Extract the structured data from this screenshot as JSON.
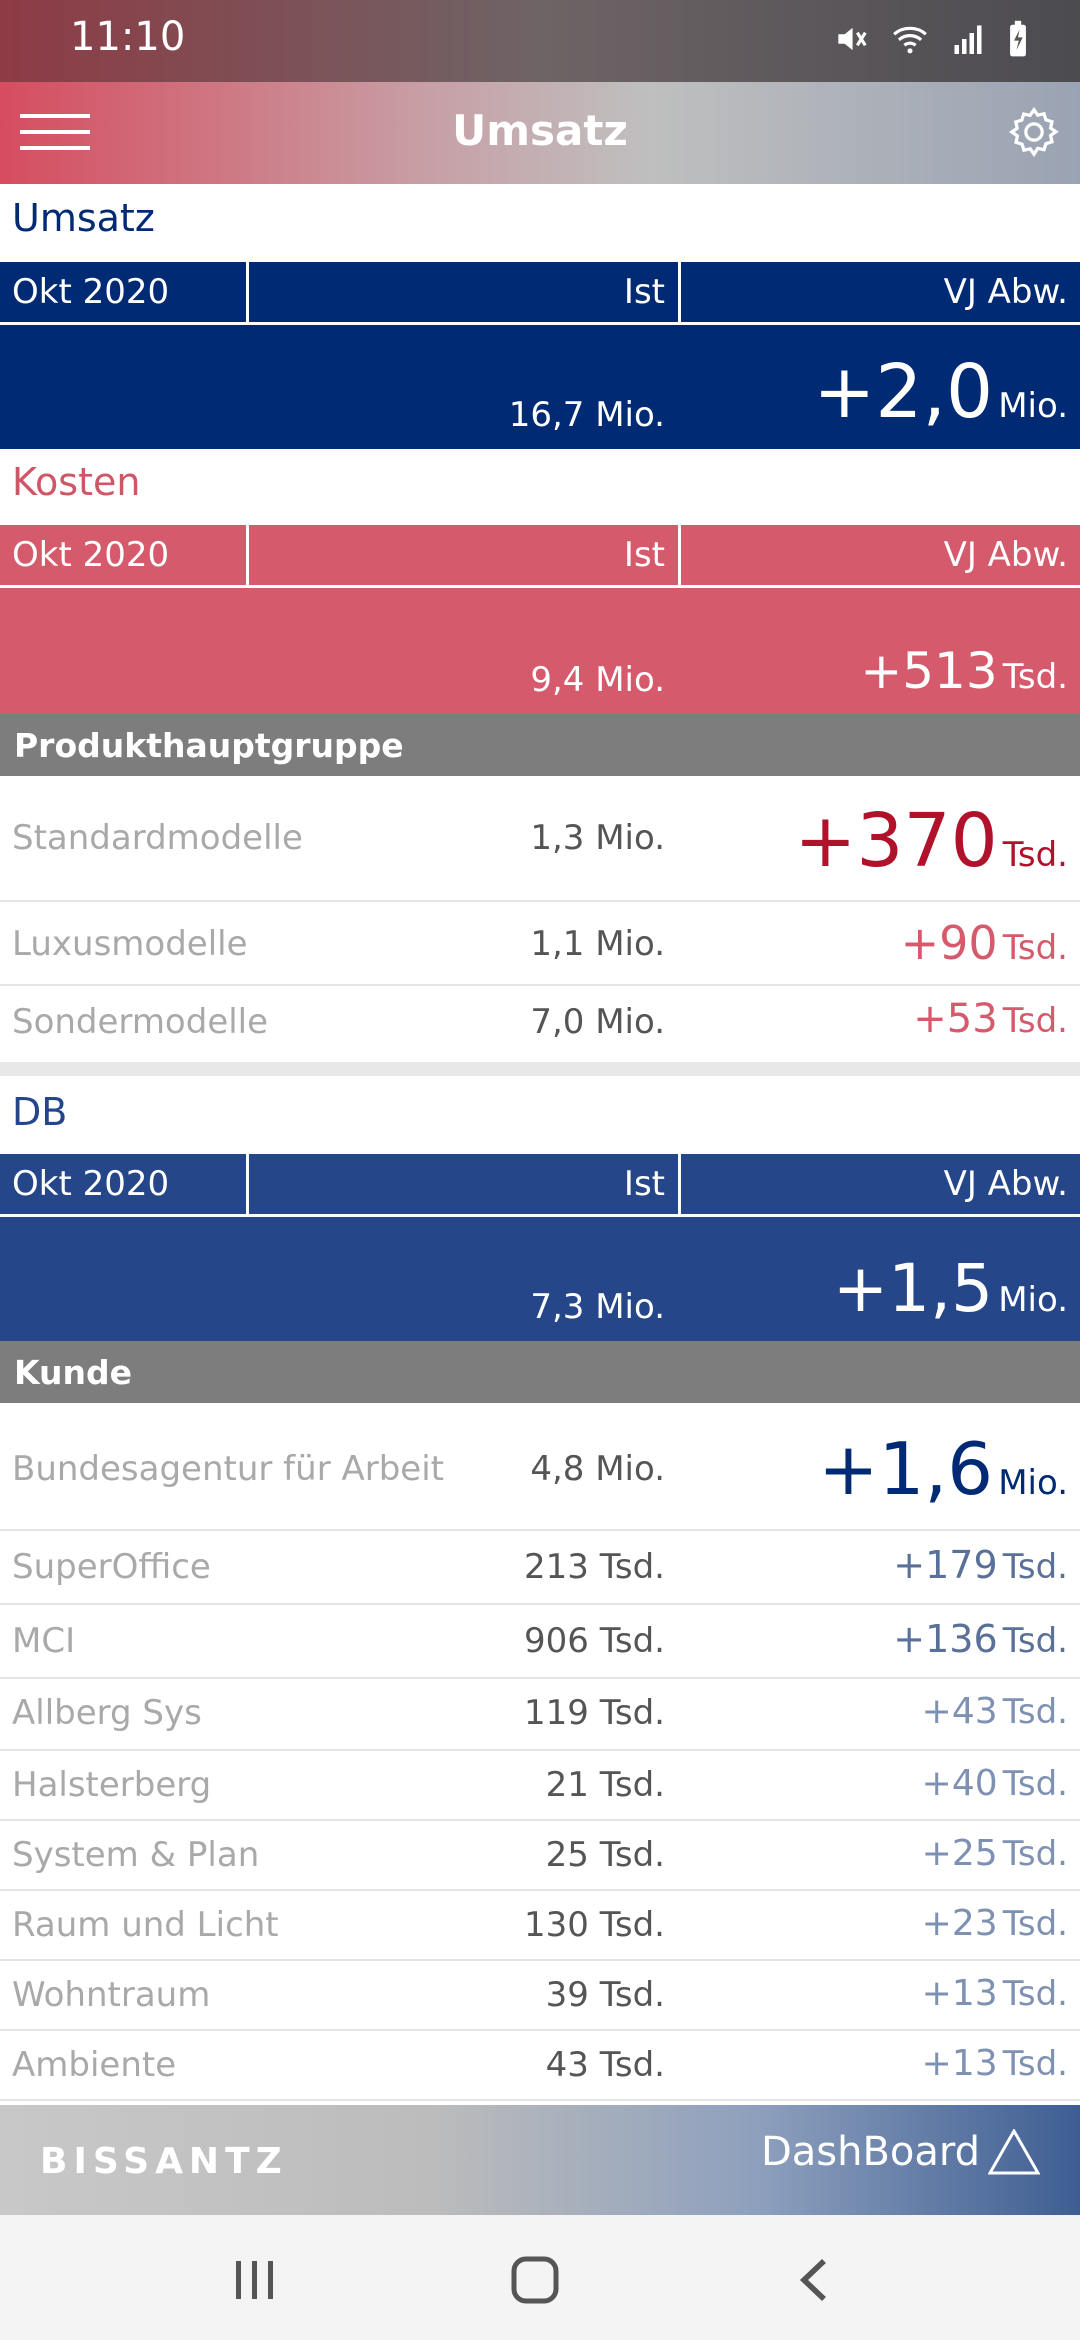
{
  "status": {
    "time": "11:10"
  },
  "app": {
    "title": "Umsatz"
  },
  "umsatz": {
    "title": "Umsatz",
    "period": "Okt 2020",
    "col_ist": "Ist",
    "col_dev": "VJ Abw.",
    "ist": "16,7 Mio.",
    "dev_value": "+2,0",
    "dev_unit": "Mio."
  },
  "kosten": {
    "title": "Kosten",
    "period": "Okt 2020",
    "col_ist": "Ist",
    "col_dev": "VJ Abw.",
    "ist": "9,4 Mio.",
    "dev_value": "+513",
    "dev_unit": "Tsd.",
    "group_title": "Produkthauptgruppe",
    "rows": [
      {
        "name": "Standardmodelle",
        "ist": "1,3 Mio.",
        "dev": "+370",
        "unit": "Tsd."
      },
      {
        "name": "Luxusmodelle",
        "ist": "1,1 Mio.",
        "dev": "+90",
        "unit": "Tsd."
      },
      {
        "name": "Sondermodelle",
        "ist": "7,0 Mio.",
        "dev": "+53",
        "unit": "Tsd."
      }
    ]
  },
  "db": {
    "title": "DB",
    "period": "Okt 2020",
    "col_ist": "Ist",
    "col_dev": "VJ Abw.",
    "ist": "7,3 Mio.",
    "dev_value": "+1,5",
    "dev_unit": "Mio.",
    "group_title": "Kunde",
    "rows": [
      {
        "name": "Bundesagentur für Arbeit",
        "ist": "4,8 Mio.",
        "dev": "+1,6",
        "unit": "Mio."
      },
      {
        "name": "SuperOffice",
        "ist": "213 Tsd.",
        "dev": "+179",
        "unit": "Tsd."
      },
      {
        "name": "MCI",
        "ist": "906 Tsd.",
        "dev": "+136",
        "unit": "Tsd."
      },
      {
        "name": "Allberg Sys",
        "ist": "119 Tsd.",
        "dev": "+43",
        "unit": "Tsd."
      },
      {
        "name": "Halsterberg",
        "ist": "21 Tsd.",
        "dev": "+40",
        "unit": "Tsd."
      },
      {
        "name": "System & Plan",
        "ist": "25 Tsd.",
        "dev": "+25",
        "unit": "Tsd."
      },
      {
        "name": "Raum und Licht",
        "ist": "130 Tsd.",
        "dev": "+23",
        "unit": "Tsd."
      },
      {
        "name": "Wohntraum",
        "ist": "39 Tsd.",
        "dev": "+13",
        "unit": "Tsd."
      },
      {
        "name": "Ambiente",
        "ist": "43 Tsd.",
        "dev": "+13",
        "unit": "Tsd."
      }
    ]
  },
  "footer": {
    "brand": "BISSANTZ",
    "product": "DashBoard"
  },
  "colors": {
    "umsatz_blue": "#002a73",
    "db_blue": "#26468a",
    "kosten_red": "#d55a6b",
    "kosten_dark_red": "#b0122c",
    "section_red_title": "#d05566"
  }
}
